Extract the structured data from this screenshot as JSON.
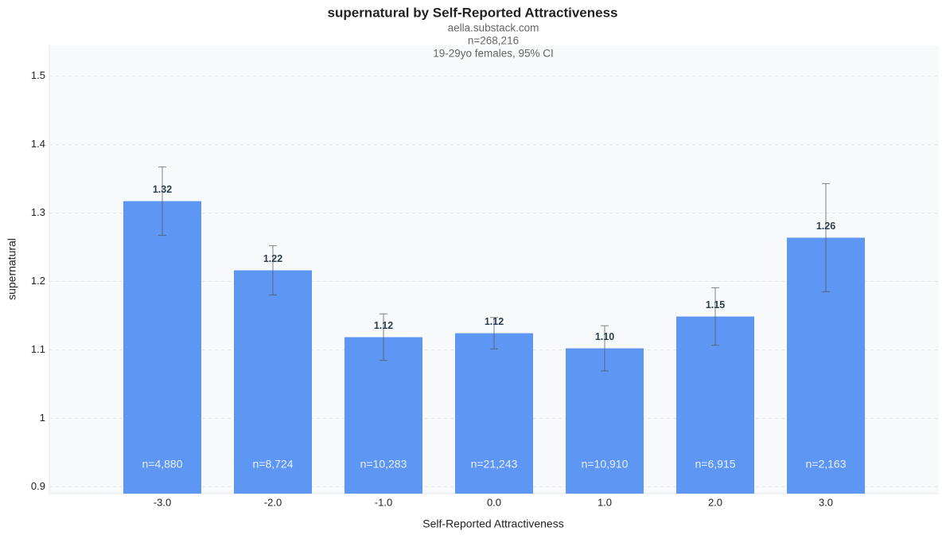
{
  "chart_data": {
    "type": "bar",
    "title": "supernatural by Self-Reported Attractiveness",
    "subtitle": [
      "aella.substack.com",
      "n=268,216",
      "19-29yo females, 95% CI"
    ],
    "x_label": "Self-Reported Attractiveness",
    "y_label": "supernatural",
    "categories": [
      "-3.0",
      "-2.0",
      "-1.0",
      "0.0",
      "1.0",
      "2.0",
      "3.0"
    ],
    "values": [
      1.3174,
      1.2163,
      1.1186,
      1.1244,
      1.1023,
      1.1488,
      1.264
    ],
    "value_labels": [
      "1.32",
      "1.22",
      "1.12",
      "1.12",
      "1.10",
      "1.15",
      "1.26"
    ],
    "errors": [
      0.05,
      0.036,
      0.034,
      0.023,
      0.033,
      0.042,
      0.079
    ],
    "bar_labels": [
      "n=4,880",
      "n=8,724",
      "n=10,283",
      "n=21,243",
      "n=10,910",
      "n=6,915",
      "n=2,163"
    ],
    "color": "#5e96f3",
    "ylim": [
      0.89,
      1.545
    ],
    "yticks": [
      0.9,
      1.0,
      1.1,
      1.2,
      1.3,
      1.4,
      1.5
    ],
    "grid": true
  }
}
